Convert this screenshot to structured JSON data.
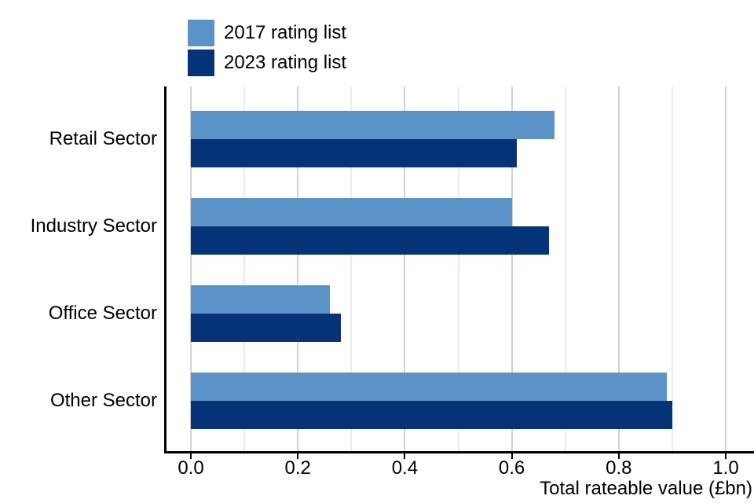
{
  "chart_data": {
    "type": "bar",
    "orientation": "horizontal",
    "title": "",
    "categories": [
      "Retail Sector",
      "Industry Sector",
      "Office Sector",
      "Other Sector"
    ],
    "series": [
      {
        "name": "2017 rating list",
        "color": "#5B93C8",
        "values": [
          0.68,
          0.6,
          0.26,
          0.89
        ]
      },
      {
        "name": "2023 rating list",
        "color": "#053377",
        "values": [
          0.61,
          0.67,
          0.28,
          0.9
        ]
      }
    ],
    "xlabel": "Total rateable value (£bn)",
    "xlim": [
      0,
      1.05
    ],
    "x_ticks": [
      0.0,
      0.2,
      0.4,
      0.6,
      0.8,
      1.0
    ],
    "x_tick_labels": [
      "0.0",
      "0.2",
      "0.4",
      "0.6",
      "0.8",
      "1.0"
    ],
    "x_minor_gridlines": [
      0.1,
      0.3,
      0.5,
      0.7,
      0.9
    ],
    "grid": "vertical-only",
    "legend_position": "top-left"
  },
  "colors": {
    "background": "#ffffff",
    "axis_line": "#000000",
    "text": "#000000",
    "grid_major": "#d2d2d2",
    "grid_minor": "#ebebeb"
  }
}
